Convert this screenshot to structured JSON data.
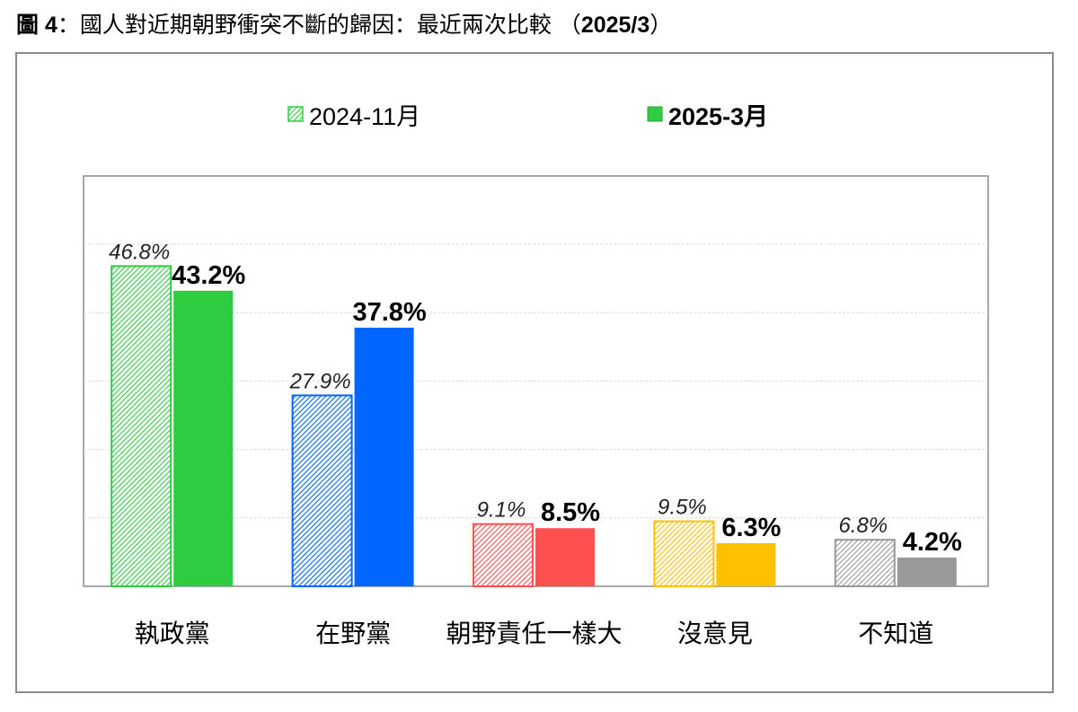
{
  "title": {
    "prefix": "圖 4",
    "text": "：國人對近期朝野衝突不斷的歸因：最近兩次比較 （",
    "date": "2025/3",
    "suffix": "）"
  },
  "colors": {
    "grid": "#d9d9d9",
    "axis": "#8c8c8c",
    "legend_prev": "#2ecc40",
    "legend_curr": "#2ecc40"
  },
  "chart_data": {
    "type": "bar",
    "categories": [
      "執政黨",
      "在野黨",
      "朝野責任一樣大",
      "沒意見",
      "不知道"
    ],
    "series": [
      {
        "name": "2024-11月",
        "values": [
          46.8,
          27.9,
          9.1,
          9.5,
          6.8
        ],
        "labels": [
          "46.8%",
          "27.9%",
          "9.1%",
          "9.5%",
          "6.8%"
        ],
        "style": "hatched-italic"
      },
      {
        "name": "2025-3月",
        "values": [
          43.2,
          37.8,
          8.5,
          6.3,
          4.2
        ],
        "labels": [
          "43.2%",
          "37.8%",
          "8.5%",
          "6.3%",
          "4.2%"
        ],
        "style": "solid-bold"
      }
    ],
    "category_colors": [
      "#2ecc40",
      "#0066ff",
      "#ff5050",
      "#ffc000",
      "#999999"
    ],
    "ylim": [
      0,
      50
    ],
    "grid": true,
    "legend_position": "top"
  }
}
